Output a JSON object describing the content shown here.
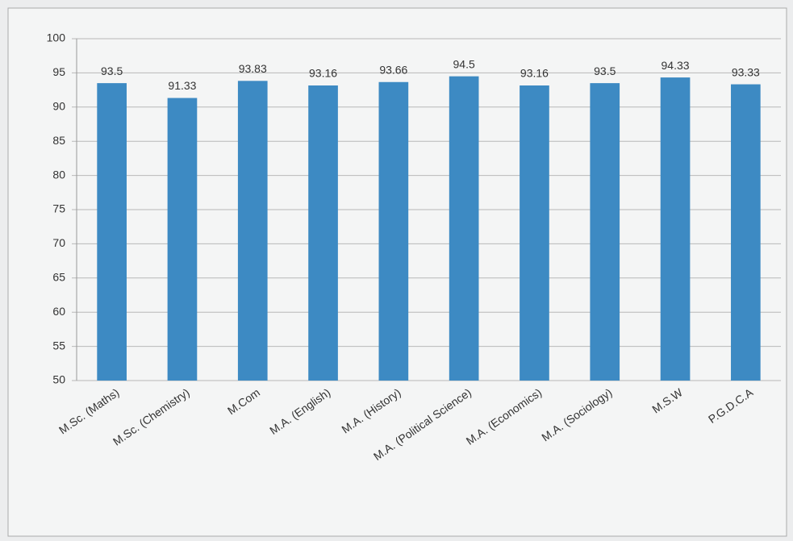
{
  "chart_data": {
    "type": "bar",
    "categories": [
      "M.Sc. (Maths)",
      "M.Sc. (Chemistry)",
      "M.Com",
      "M.A. (English)",
      "M.A. (History)",
      "M.A. (Political Science)",
      "M.A. (Economics)",
      "M.A. (Sociology)",
      "M.S.W",
      "P.G.D.C.A"
    ],
    "values": [
      93.5,
      91.33,
      93.83,
      93.16,
      93.66,
      94.5,
      93.16,
      93.5,
      94.33,
      93.33
    ],
    "color": "#3d8ac3",
    "ylim": [
      50,
      100
    ],
    "yticks": [
      50,
      55,
      60,
      65,
      70,
      75,
      80,
      85,
      90,
      95,
      100
    ],
    "grid": true
  }
}
